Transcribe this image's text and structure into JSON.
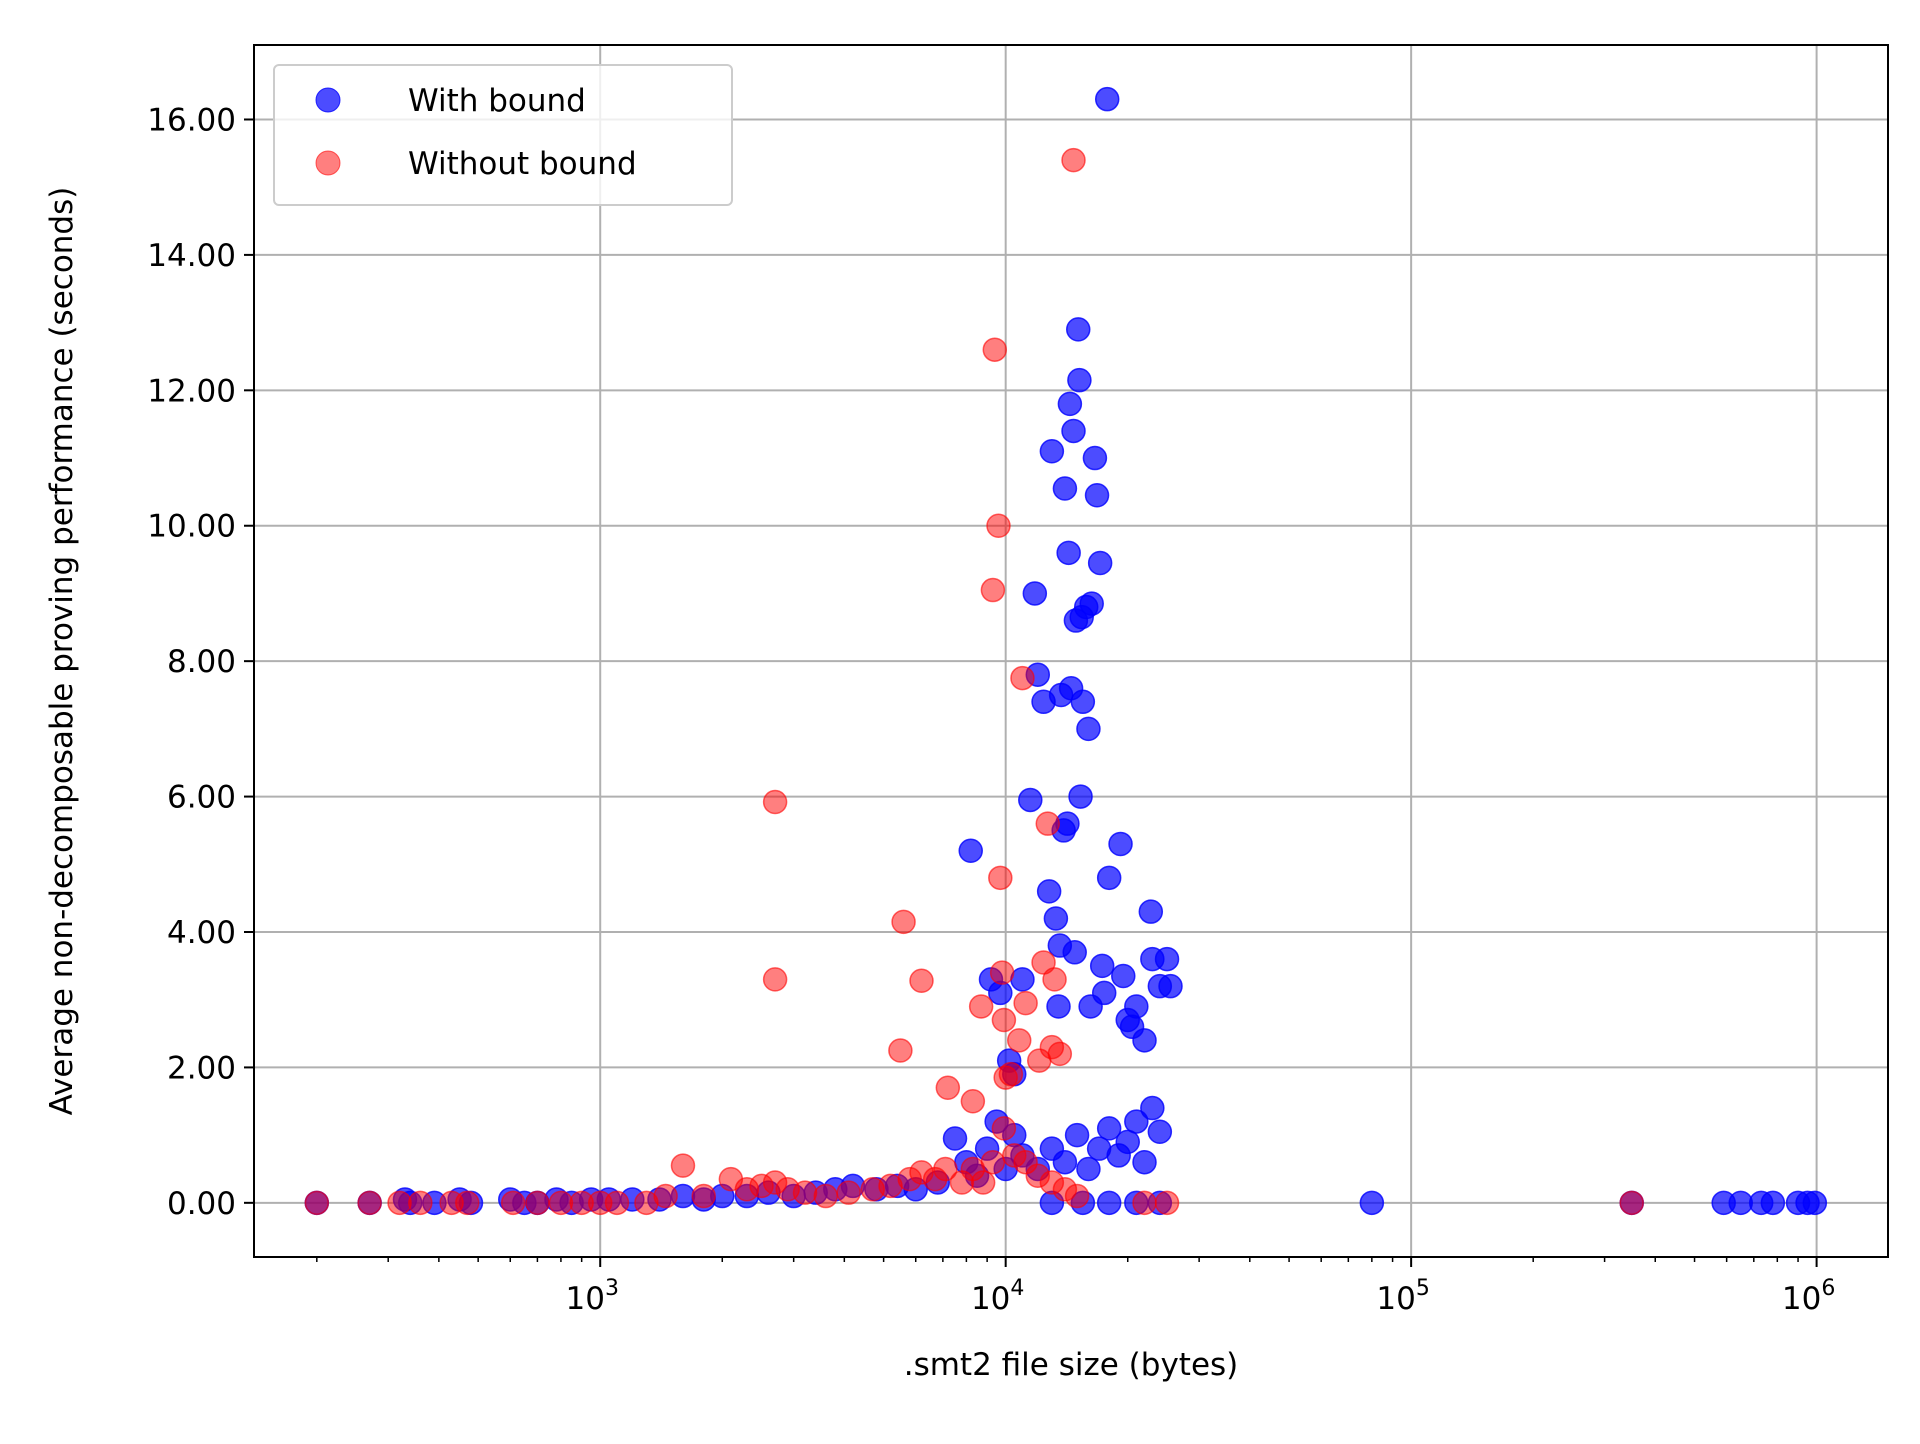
{
  "chart_data": {
    "type": "scatter",
    "xlabel": ".smt2 file size (bytes)",
    "ylabel": "Average non-decomposable proving performance (seconds)",
    "xscale": "log",
    "xlim": [
      140,
      1500000
    ],
    "ylim": [
      -0.8,
      17.1
    ],
    "x_ticks": [
      {
        "value": 1000,
        "base": "10",
        "exp": "3"
      },
      {
        "value": 10000,
        "base": "10",
        "exp": "4"
      },
      {
        "value": 100000,
        "base": "10",
        "exp": "5"
      },
      {
        "value": 1000000,
        "base": "10",
        "exp": "6"
      }
    ],
    "y_ticks": [
      0,
      2,
      4,
      6,
      8,
      10,
      12,
      14,
      16
    ],
    "y_tick_labels": [
      "0.00",
      "2.00",
      "4.00",
      "6.00",
      "8.00",
      "10.00",
      "12.00",
      "14.00",
      "16.00"
    ],
    "grid": true,
    "legend_position": "top-left",
    "series": [
      {
        "name": "With bound",
        "color": "#0000ff",
        "alpha": 0.7,
        "points": [
          [
            200,
            0
          ],
          [
            270,
            0
          ],
          [
            330,
            0.05
          ],
          [
            340,
            0
          ],
          [
            390,
            0
          ],
          [
            450,
            0.05
          ],
          [
            480,
            0
          ],
          [
            600,
            0.05
          ],
          [
            650,
            0
          ],
          [
            700,
            0
          ],
          [
            780,
            0.05
          ],
          [
            850,
            0
          ],
          [
            950,
            0.05
          ],
          [
            1050,
            0.05
          ],
          [
            1200,
            0.05
          ],
          [
            1400,
            0.05
          ],
          [
            1600,
            0.1
          ],
          [
            1800,
            0.05
          ],
          [
            2000,
            0.1
          ],
          [
            2300,
            0.1
          ],
          [
            2600,
            0.15
          ],
          [
            3000,
            0.1
          ],
          [
            3400,
            0.15
          ],
          [
            3800,
            0.2
          ],
          [
            4200,
            0.25
          ],
          [
            4800,
            0.2
          ],
          [
            5400,
            0.25
          ],
          [
            6000,
            0.2
          ],
          [
            6800,
            0.3
          ],
          [
            7500,
            0.95
          ],
          [
            8000,
            0.6
          ],
          [
            8500,
            0.4
          ],
          [
            9000,
            0.8
          ],
          [
            9500,
            1.2
          ],
          [
            10000,
            0.5
          ],
          [
            10500,
            1.0
          ],
          [
            11000,
            0.7
          ],
          [
            12000,
            0.5
          ],
          [
            13000,
            0.8
          ],
          [
            14000,
            0.6
          ],
          [
            15000,
            1.0
          ],
          [
            16000,
            0.5
          ],
          [
            17000,
            0.8
          ],
          [
            18000,
            1.1
          ],
          [
            19000,
            0.7
          ],
          [
            20000,
            0.9
          ],
          [
            21000,
            1.2
          ],
          [
            22000,
            0.6
          ],
          [
            23000,
            1.4
          ],
          [
            24000,
            1.05
          ],
          [
            8200,
            5.2
          ],
          [
            9200,
            3.3
          ],
          [
            9700,
            3.1
          ],
          [
            10200,
            2.1
          ],
          [
            10500,
            1.9
          ],
          [
            11000,
            3.3
          ],
          [
            11500,
            5.95
          ],
          [
            11800,
            9.0
          ],
          [
            12000,
            7.8
          ],
          [
            12400,
            7.4
          ],
          [
            12800,
            4.6
          ],
          [
            13000,
            11.1
          ],
          [
            13300,
            4.2
          ],
          [
            13500,
            2.9
          ],
          [
            13700,
            7.5
          ],
          [
            13900,
            5.5
          ],
          [
            14000,
            10.55
          ],
          [
            14200,
            5.6
          ],
          [
            14300,
            9.6
          ],
          [
            14400,
            11.8
          ],
          [
            14500,
            7.6
          ],
          [
            14700,
            11.4
          ],
          [
            14900,
            8.6
          ],
          [
            15100,
            12.9
          ],
          [
            15200,
            12.15
          ],
          [
            15300,
            6.0
          ],
          [
            15400,
            8.65
          ],
          [
            15500,
            7.4
          ],
          [
            15800,
            8.8
          ],
          [
            16000,
            7.0
          ],
          [
            16300,
            8.85
          ],
          [
            16600,
            11.0
          ],
          [
            16800,
            10.45
          ],
          [
            17100,
            9.45
          ],
          [
            17300,
            3.5
          ],
          [
            17800,
            16.3
          ],
          [
            18000,
            4.8
          ],
          [
            19200,
            5.3
          ],
          [
            19500,
            3.35
          ],
          [
            20000,
            2.7
          ],
          [
            20500,
            2.6
          ],
          [
            21000,
            2.9
          ],
          [
            22000,
            2.4
          ],
          [
            22800,
            4.3
          ],
          [
            23000,
            3.6
          ],
          [
            24000,
            3.2
          ],
          [
            25000,
            3.6
          ],
          [
            25500,
            3.2
          ],
          [
            13600,
            3.8
          ],
          [
            14800,
            3.7
          ],
          [
            16200,
            2.9
          ],
          [
            17500,
            3.1
          ],
          [
            13000,
            0
          ],
          [
            15500,
            0
          ],
          [
            18000,
            0
          ],
          [
            21000,
            0
          ],
          [
            24000,
            0
          ],
          [
            80000,
            0
          ],
          [
            350000,
            0
          ],
          [
            590000,
            0
          ],
          [
            650000,
            0
          ],
          [
            730000,
            0
          ],
          [
            780000,
            0
          ],
          [
            900000,
            0
          ],
          [
            950000,
            0
          ],
          [
            990000,
            0
          ]
        ]
      },
      {
        "name": "Without bound",
        "color": "#ff0000",
        "alpha": 0.5,
        "points": [
          [
            200,
            0
          ],
          [
            270,
            0
          ],
          [
            320,
            0
          ],
          [
            360,
            0
          ],
          [
            430,
            0
          ],
          [
            470,
            0
          ],
          [
            610,
            0
          ],
          [
            700,
            0
          ],
          [
            800,
            0
          ],
          [
            900,
            0
          ],
          [
            1000,
            0
          ],
          [
            1100,
            0
          ],
          [
            1300,
            0
          ],
          [
            1450,
            0.1
          ],
          [
            1600,
            0.55
          ],
          [
            1800,
            0.1
          ],
          [
            2100,
            0.35
          ],
          [
            2300,
            0.2
          ],
          [
            2500,
            0.25
          ],
          [
            2700,
            0.3
          ],
          [
            2900,
            0.2
          ],
          [
            3200,
            0.15
          ],
          [
            3600,
            0.1
          ],
          [
            4100,
            0.15
          ],
          [
            4700,
            0.2
          ],
          [
            5200,
            0.25
          ],
          [
            5800,
            0.35
          ],
          [
            6200,
            0.45
          ],
          [
            6700,
            0.35
          ],
          [
            7100,
            0.5
          ],
          [
            7800,
            0.3
          ],
          [
            8300,
            0.5
          ],
          [
            8800,
            0.3
          ],
          [
            9300,
            0.6
          ],
          [
            9900,
            1.1
          ],
          [
            10500,
            0.7
          ],
          [
            11200,
            0.6
          ],
          [
            12000,
            0.4
          ],
          [
            13000,
            0.3
          ],
          [
            14000,
            0.2
          ],
          [
            15000,
            0.1
          ],
          [
            2700,
            5.92
          ],
          [
            2700,
            3.3
          ],
          [
            5500,
            2.25
          ],
          [
            5600,
            4.15
          ],
          [
            6200,
            3.28
          ],
          [
            7200,
            1.7
          ],
          [
            8300,
            1.5
          ],
          [
            8700,
            2.9
          ],
          [
            9300,
            9.05
          ],
          [
            9400,
            12.6
          ],
          [
            9600,
            10.0
          ],
          [
            9700,
            4.8
          ],
          [
            9800,
            3.4
          ],
          [
            9900,
            2.7
          ],
          [
            10000,
            1.85
          ],
          [
            10300,
            1.9
          ],
          [
            10800,
            2.4
          ],
          [
            11000,
            7.75
          ],
          [
            11200,
            2.95
          ],
          [
            12100,
            2.1
          ],
          [
            12400,
            3.55
          ],
          [
            12700,
            5.6
          ],
          [
            13000,
            2.3
          ],
          [
            13200,
            3.3
          ],
          [
            13600,
            2.2
          ],
          [
            14700,
            15.4
          ],
          [
            22000,
            0
          ],
          [
            25000,
            0
          ],
          [
            350000,
            0
          ]
        ]
      }
    ]
  }
}
